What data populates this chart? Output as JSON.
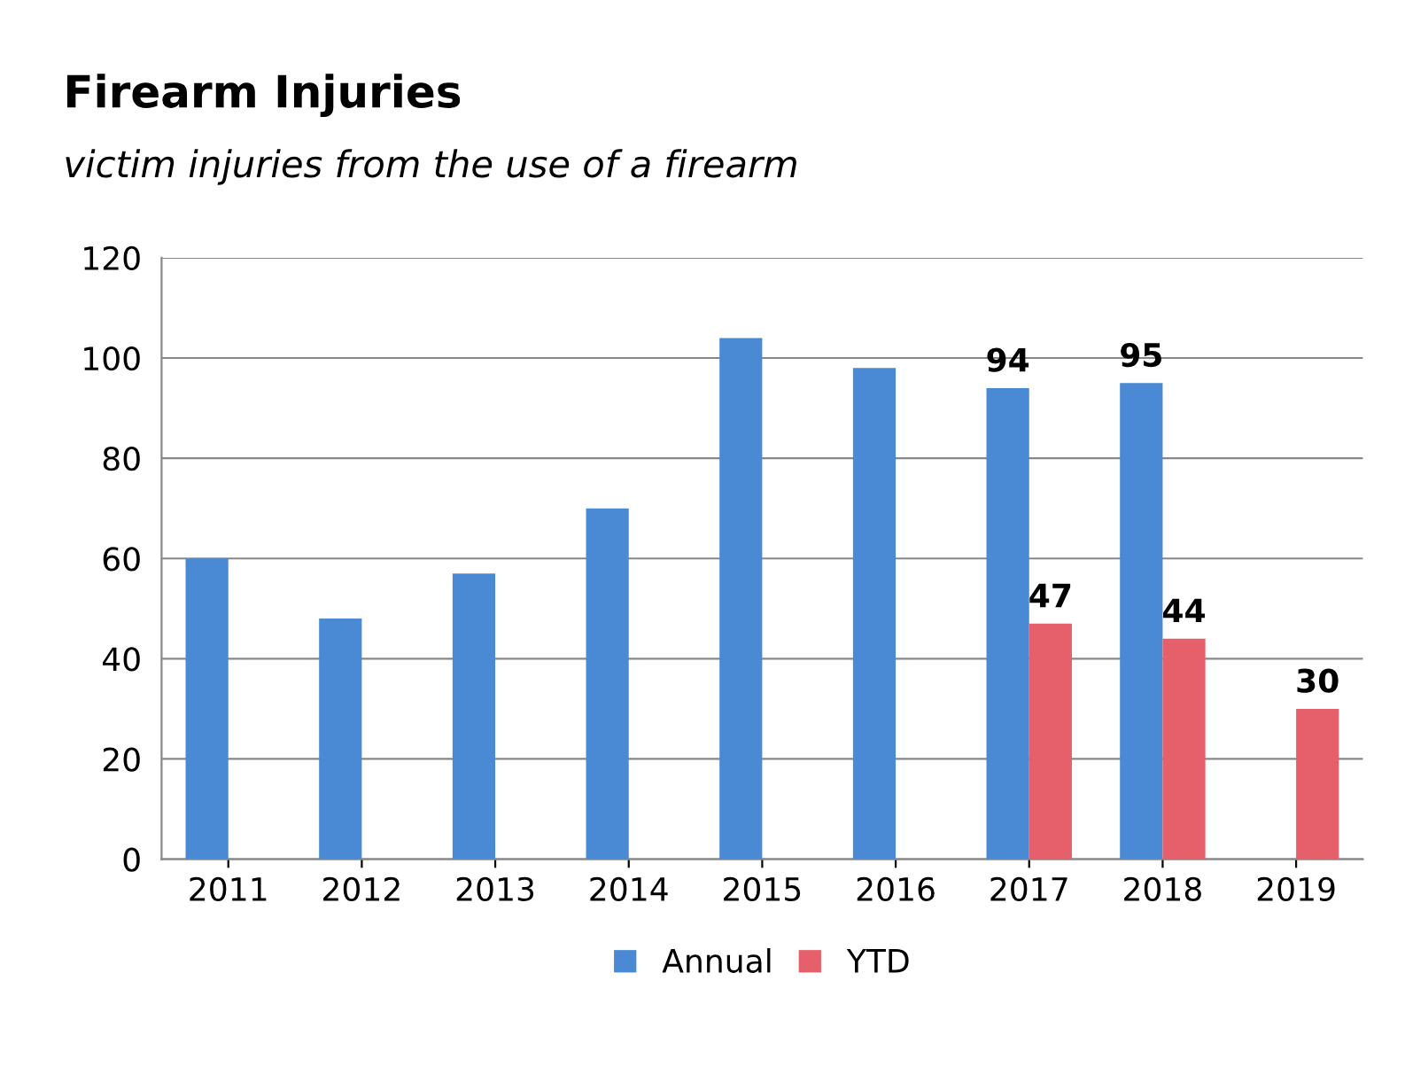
{
  "chart_data": {
    "type": "bar",
    "title": "Firearm Injuries",
    "subtitle": "victim injuries from the use of a firearm",
    "categories": [
      "2011",
      "2012",
      "2013",
      "2014",
      "2015",
      "2016",
      "2017",
      "2018",
      "2019"
    ],
    "series": [
      {
        "name": "Annual",
        "color": "#4a8ad4",
        "values": [
          60,
          48,
          57,
          70,
          104,
          98,
          94,
          95,
          null
        ],
        "value_labels": [
          null,
          null,
          null,
          null,
          null,
          null,
          "94",
          "95",
          null
        ]
      },
      {
        "name": "YTD",
        "color": "#e5606a",
        "values": [
          null,
          null,
          null,
          null,
          null,
          null,
          47,
          44,
          30
        ],
        "value_labels": [
          null,
          null,
          null,
          null,
          null,
          null,
          "47",
          "44",
          "30"
        ]
      }
    ],
    "ylim": [
      0,
      120
    ],
    "yticks": [
      0,
      20,
      40,
      60,
      80,
      100,
      120
    ],
    "grid": "y",
    "legend": "bottom"
  }
}
